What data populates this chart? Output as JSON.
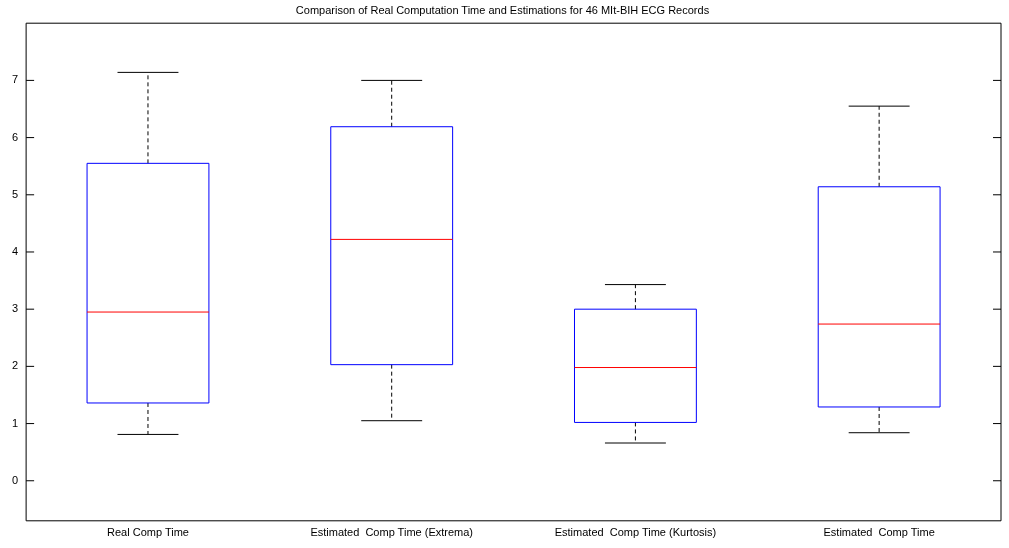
{
  "chart_data": {
    "type": "box",
    "title": "Comparison of Real Computation Time and Estimations for 46 MIt-BIH ECG Records",
    "categories": [
      "Real Comp Time",
      "Estimated  Comp Time (Extrema)",
      "Estimated  Comp Time (Kurtosis)",
      "Estimated  Comp Time"
    ],
    "boxes": [
      {
        "low": 0.81,
        "q1": 1.36,
        "median": 2.95,
        "q3": 5.55,
        "high": 7.14
      },
      {
        "low": 1.05,
        "q1": 2.03,
        "median": 4.22,
        "q3": 6.19,
        "high": 7.0
      },
      {
        "low": 0.66,
        "q1": 1.02,
        "median": 1.98,
        "q3": 3.0,
        "high": 3.43
      },
      {
        "low": 0.84,
        "q1": 1.29,
        "median": 2.74,
        "q3": 5.14,
        "high": 6.55
      }
    ],
    "color": "#0000ff",
    "ylim": [
      -0.7,
      8
    ],
    "yticks": [
      0,
      1,
      2,
      3,
      4,
      5,
      6,
      7
    ],
    "grid": false,
    "legend": false,
    "line_style": "dashed"
  }
}
